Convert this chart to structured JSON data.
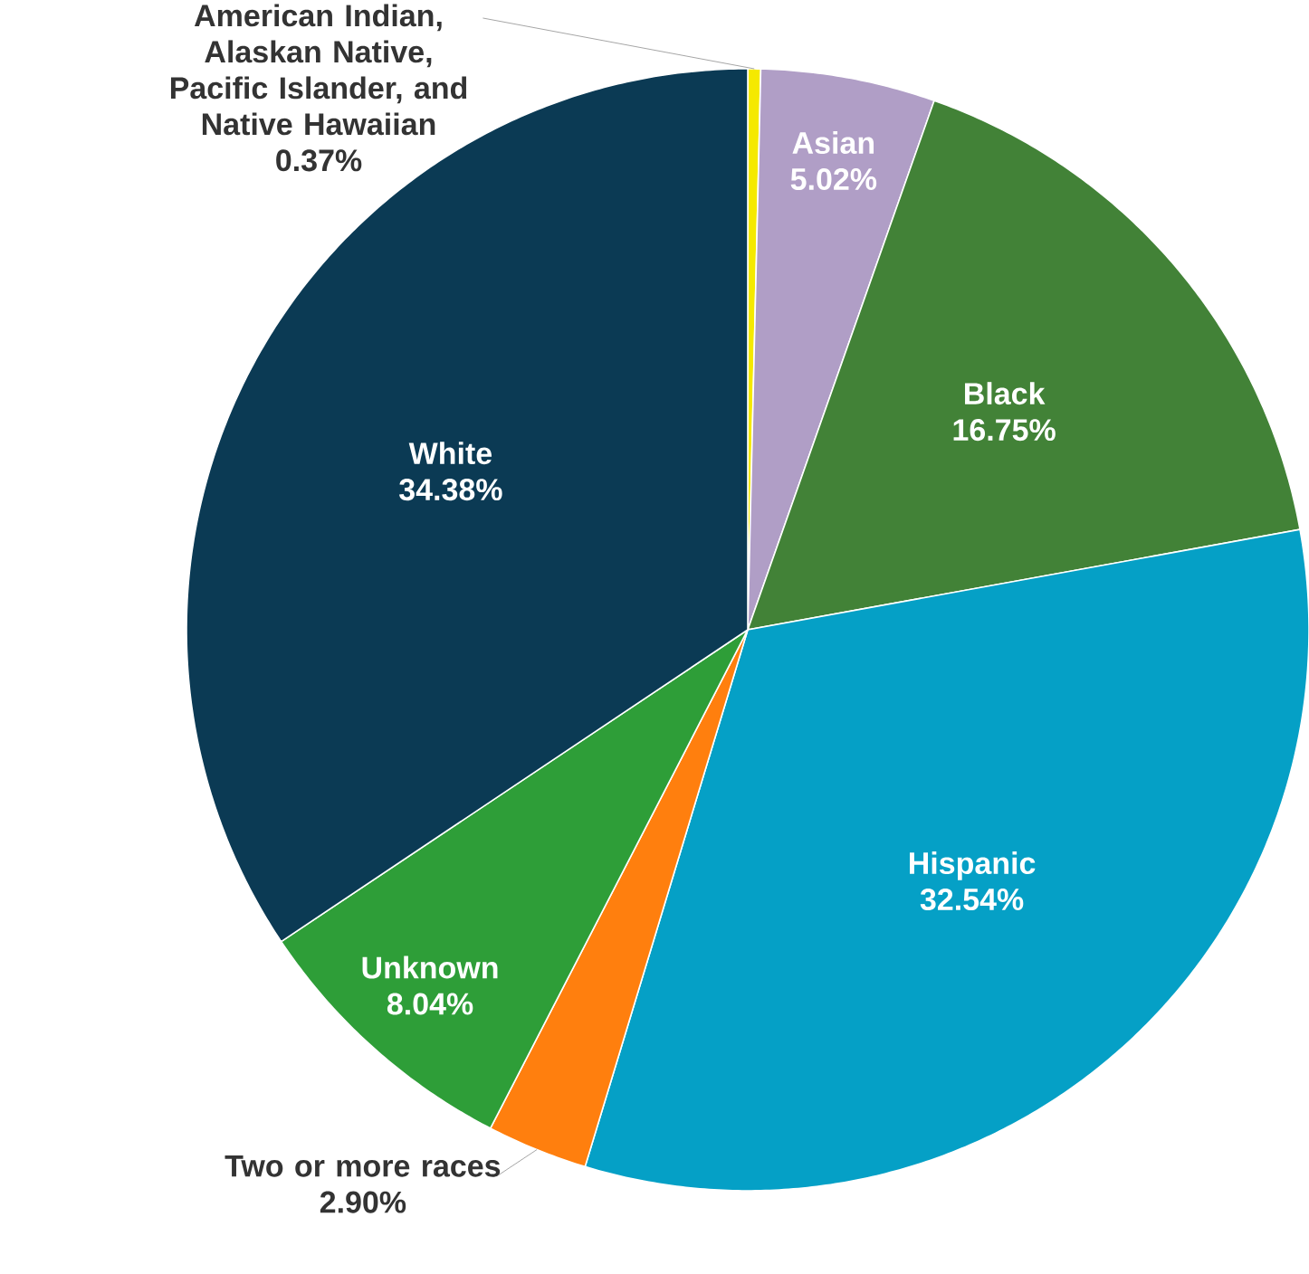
{
  "chart_data": {
    "type": "pie",
    "data_labels": true,
    "value_labels": [
      "0.37%",
      "5.02%",
      "16.75%",
      "32.54%",
      "2.90%",
      "8.04%",
      "34.38%"
    ],
    "categories": [
      "American Indian, Alaskan Native, Pacific Islander, and Native Hawaiian",
      "Asian",
      "Black",
      "Hispanic",
      "Two or more races",
      "Unknown",
      "White"
    ],
    "values": [
      0.37,
      5.02,
      16.75,
      32.54,
      2.9,
      8.04,
      34.38
    ],
    "colors": [
      "#f5e900",
      "#b09ec6",
      "#428237",
      "#05a0c6",
      "#ff7f0e",
      "#2e9e38",
      "#0b3a54"
    ]
  }
}
